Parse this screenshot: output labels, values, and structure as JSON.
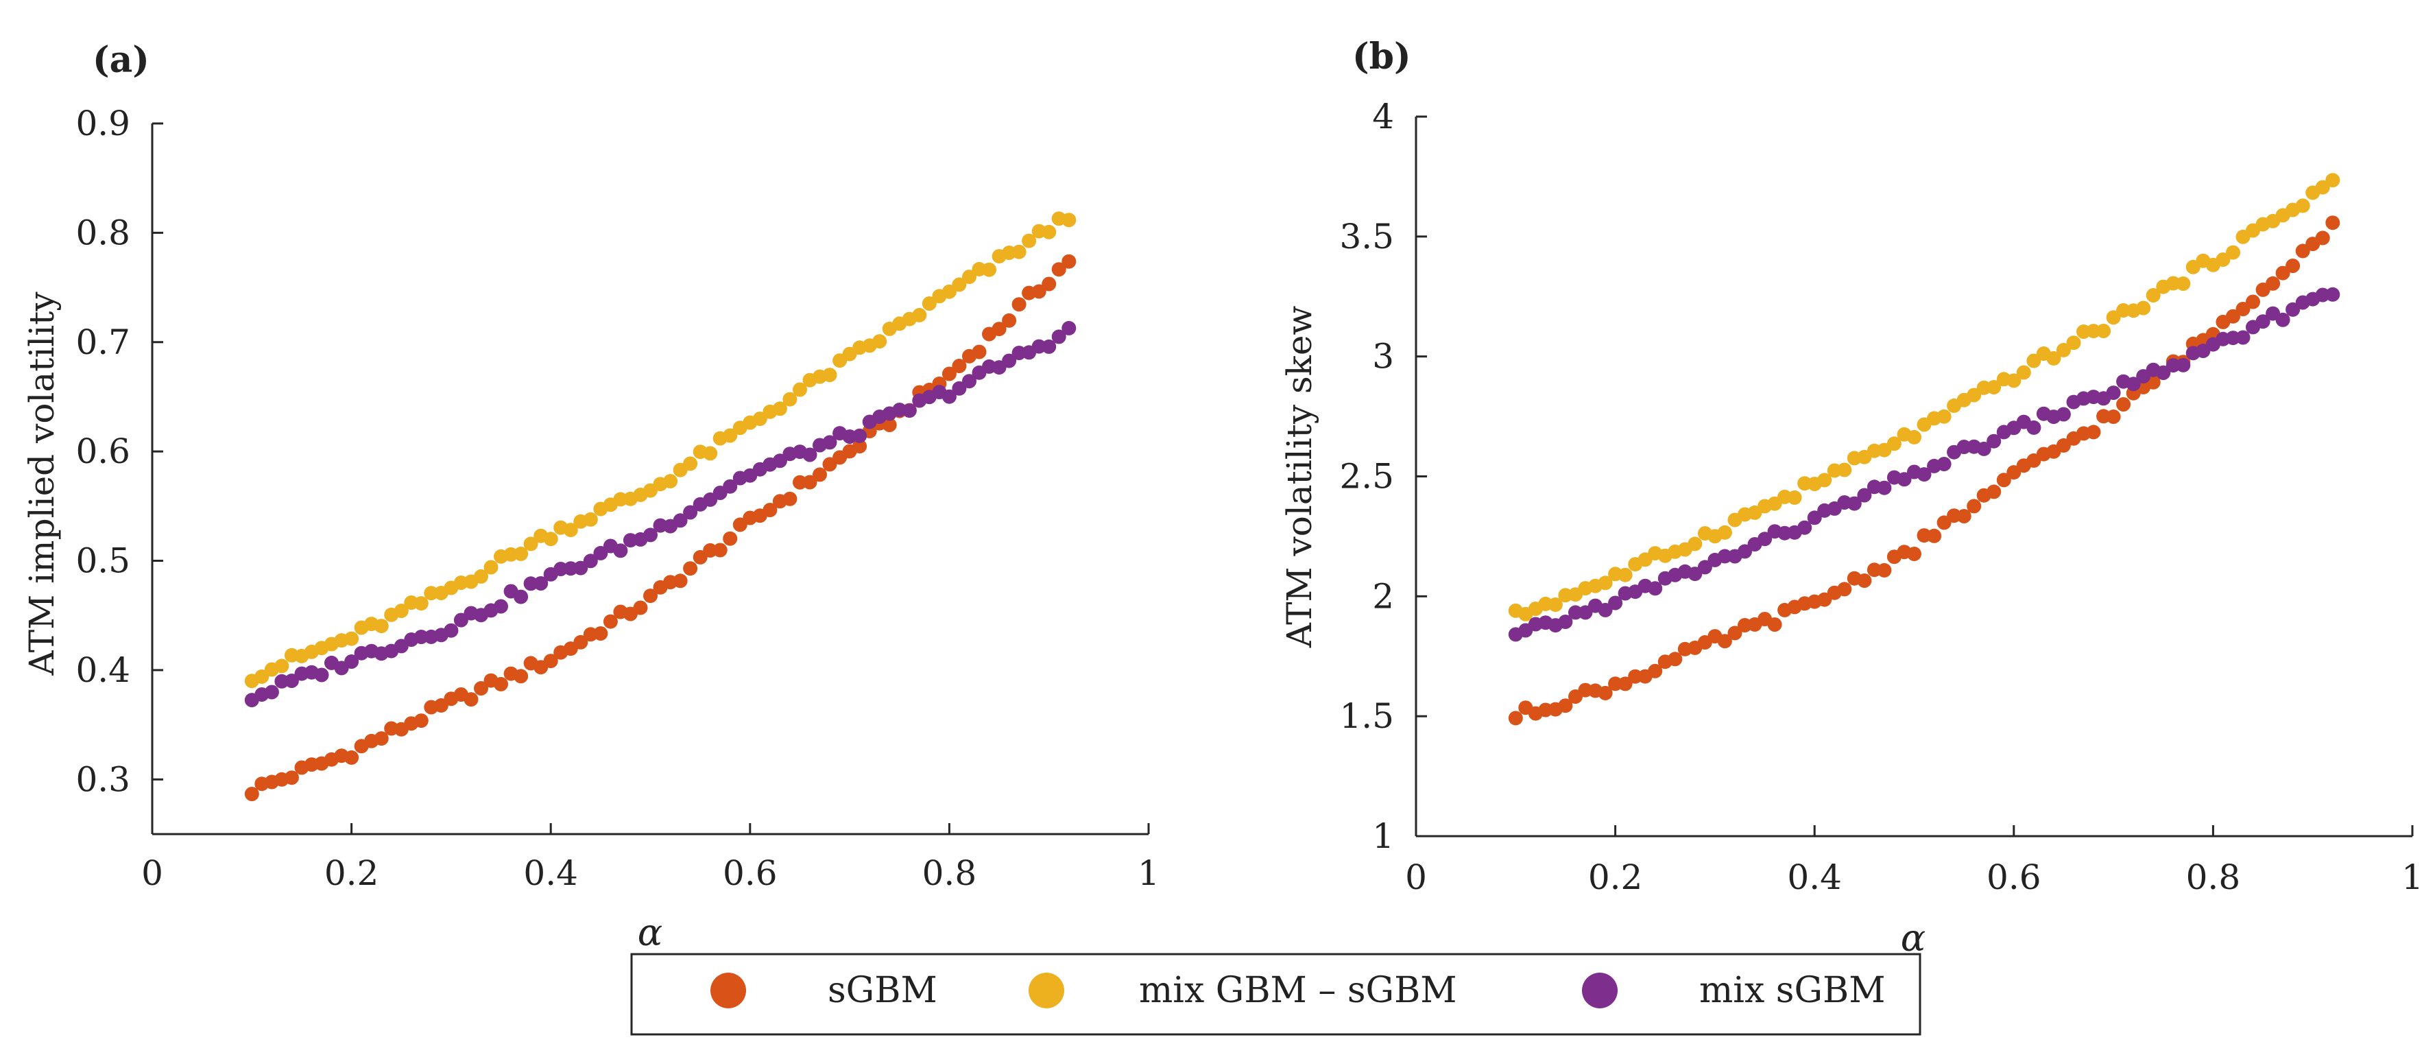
{
  "legend": {
    "entries": [
      {
        "label": "sGBM",
        "color": "#D95319"
      },
      {
        "label": "mix GBM – sGBM",
        "color": "#EDB120"
      },
      {
        "label": "mix sGBM",
        "color": "#7E2F8E"
      }
    ]
  },
  "chart_data": [
    {
      "type": "scatter",
      "panel_label": "(a)",
      "xlabel": "α",
      "ylabel": "ATM implied volatility",
      "xlim": [
        0,
        1
      ],
      "ylim": [
        0.25,
        0.9
      ],
      "xticks": [
        0,
        0.2,
        0.4,
        0.6,
        0.8,
        1
      ],
      "xtick_labels": [
        "0",
        "0.2",
        "0.4",
        "0.6",
        "0.8",
        "1"
      ],
      "yticks": [
        0.3,
        0.4,
        0.5,
        0.6,
        0.7,
        0.8,
        0.9
      ],
      "ytick_labels": [
        "0.3",
        "0.4",
        "0.5",
        "0.6",
        "0.7",
        "0.8",
        "0.9"
      ],
      "x_range": [
        0.1,
        0.92
      ],
      "n_points": 83,
      "series": [
        {
          "name": "sGBM",
          "color": "#D95319",
          "curve": [
            [
              0.1,
              0.29
            ],
            [
              0.2,
              0.325
            ],
            [
              0.3,
              0.37
            ],
            [
              0.4,
              0.41
            ],
            [
              0.5,
              0.465
            ],
            [
              0.6,
              0.535
            ],
            [
              0.7,
              0.6
            ],
            [
              0.8,
              0.67
            ],
            [
              0.92,
              0.775
            ]
          ]
        },
        {
          "name": "mix GBM – sGBM",
          "color": "#EDB120",
          "curve": [
            [
              0.1,
              0.395
            ],
            [
              0.2,
              0.43
            ],
            [
              0.3,
              0.475
            ],
            [
              0.4,
              0.525
            ],
            [
              0.5,
              0.565
            ],
            [
              0.6,
              0.625
            ],
            [
              0.7,
              0.685
            ],
            [
              0.8,
              0.745
            ],
            [
              0.92,
              0.815
            ]
          ]
        },
        {
          "name": "mix sGBM",
          "color": "#7E2F8E",
          "curve": [
            [
              0.1,
              0.375
            ],
            [
              0.2,
              0.41
            ],
            [
              0.3,
              0.44
            ],
            [
              0.4,
              0.485
            ],
            [
              0.5,
              0.525
            ],
            [
              0.6,
              0.58
            ],
            [
              0.7,
              0.615
            ],
            [
              0.8,
              0.655
            ],
            [
              0.92,
              0.71
            ]
          ]
        }
      ]
    },
    {
      "type": "scatter",
      "panel_label": "(b)",
      "xlabel": "α",
      "ylabel": "ATM volatility skew",
      "xlim": [
        0,
        1
      ],
      "ylim": [
        1,
        4
      ],
      "xticks": [
        0,
        0.2,
        0.4,
        0.6,
        0.8,
        1
      ],
      "xtick_labels": [
        "0",
        "0.2",
        "0.4",
        "0.6",
        "0.8",
        "1"
      ],
      "yticks": [
        1,
        1.5,
        2,
        2.5,
        3,
        3.5,
        4
      ],
      "ytick_labels": [
        "1",
        "1.5",
        "2",
        "2.5",
        "3",
        "3.5",
        "4"
      ],
      "x_range": [
        0.1,
        0.92
      ],
      "n_points": 83,
      "series": [
        {
          "name": "sGBM",
          "color": "#D95319",
          "curve": [
            [
              0.1,
              1.5
            ],
            [
              0.2,
              1.63
            ],
            [
              0.3,
              1.81
            ],
            [
              0.4,
              1.97
            ],
            [
              0.5,
              2.2
            ],
            [
              0.6,
              2.5
            ],
            [
              0.7,
              2.76
            ],
            [
              0.8,
              3.1
            ],
            [
              0.92,
              3.55
            ]
          ]
        },
        {
          "name": "mix GBM – sGBM",
          "color": "#EDB120",
          "curve": [
            [
              0.1,
              1.92
            ],
            [
              0.2,
              2.08
            ],
            [
              0.3,
              2.27
            ],
            [
              0.4,
              2.47
            ],
            [
              0.5,
              2.68
            ],
            [
              0.6,
              2.92
            ],
            [
              0.7,
              3.15
            ],
            [
              0.8,
              3.4
            ],
            [
              0.92,
              3.73
            ]
          ]
        },
        {
          "name": "mix sGBM",
          "color": "#7E2F8E",
          "curve": [
            [
              0.1,
              1.83
            ],
            [
              0.2,
              1.98
            ],
            [
              0.3,
              2.14
            ],
            [
              0.4,
              2.32
            ],
            [
              0.5,
              2.51
            ],
            [
              0.6,
              2.69
            ],
            [
              0.7,
              2.86
            ],
            [
              0.8,
              3.03
            ],
            [
              0.92,
              3.28
            ]
          ]
        }
      ]
    }
  ]
}
